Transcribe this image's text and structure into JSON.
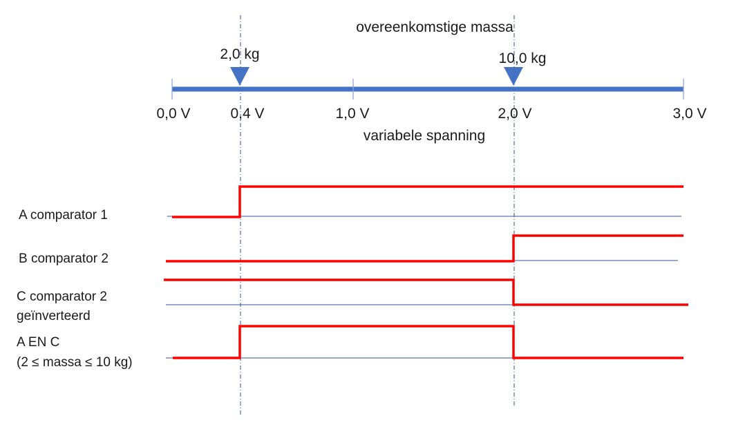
{
  "top_caption": "overeenkomstige massa",
  "bottom_caption": "variabele spanning",
  "voltage_ticks": [
    "0,0 V",
    "0,4 V",
    "1,0 V",
    "2,0 V",
    "3,0 V"
  ],
  "mass_markers": [
    "2,0 kg",
    "10,0 kg"
  ],
  "signals": [
    {
      "lines": [
        "A comparator 1"
      ]
    },
    {
      "lines": [
        "B comparator 2"
      ]
    },
    {
      "lines": [
        "C comparator 2",
        "geïnverteerd"
      ]
    },
    {
      "lines": [
        "A EN C",
        "(2 ≤ massa ≤ 10 kg)"
      ]
    }
  ],
  "colors": {
    "axis": "#4472c4",
    "marker": "#4472c4",
    "signal": "#ff0000",
    "baseline": "#2f5597",
    "guide": "#2f5597"
  }
}
